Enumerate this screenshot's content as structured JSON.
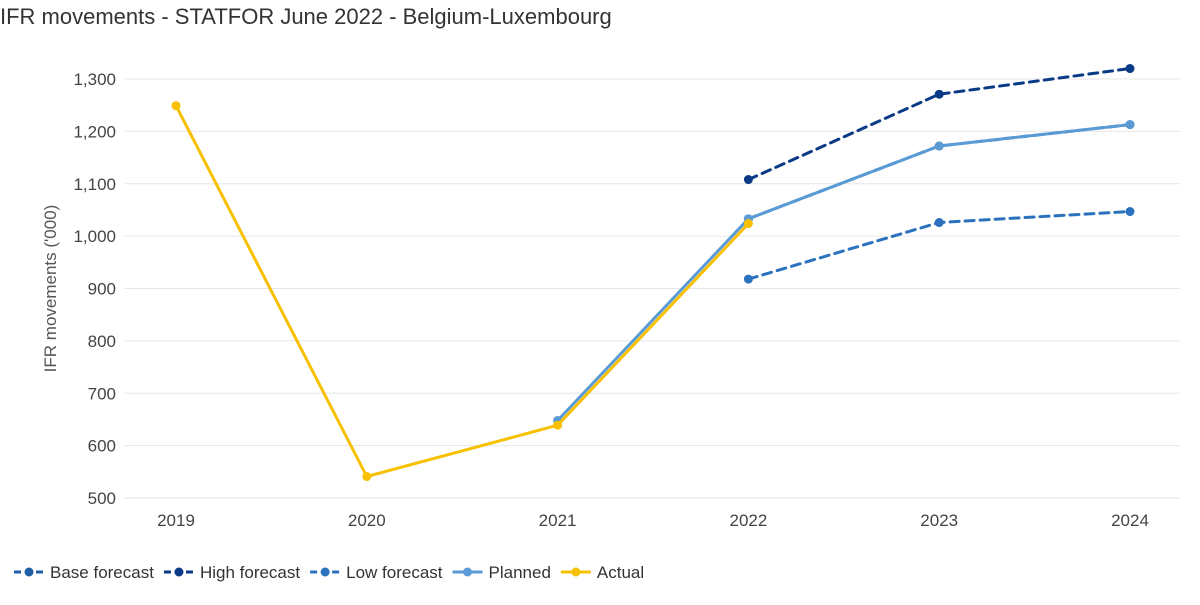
{
  "chart_data": {
    "type": "line",
    "title": "IFR movements - STATFOR June 2022 - Belgium-Luxembourg",
    "xlabel": "",
    "ylabel": "IFR movements ('000)",
    "categories": [
      "2019",
      "2020",
      "2021",
      "2022",
      "2023",
      "2024"
    ],
    "ylim": [
      500,
      1300
    ],
    "yticks": [
      "500",
      "600",
      "700",
      "800",
      "900",
      "1,000",
      "1,100",
      "1,200",
      "1,300"
    ],
    "grid": true,
    "legend_position": "bottom-left",
    "series": [
      {
        "name": "Base forecast",
        "color": "#1f5fa8",
        "dash": "dashed",
        "values": [
          null,
          null,
          null,
          1033,
          1172,
          1213
        ]
      },
      {
        "name": "High forecast",
        "color": "#0a3a86",
        "dash": "dashed",
        "values": [
          null,
          null,
          null,
          1108,
          1271,
          1320
        ]
      },
      {
        "name": "Low forecast",
        "color": "#2a72bd",
        "dash": "dashed",
        "values": [
          null,
          null,
          null,
          918,
          1026,
          1047
        ]
      },
      {
        "name": "Planned",
        "color": "#5b9bd5",
        "dash": "solid",
        "values": [
          null,
          null,
          648,
          1033,
          1172,
          1213
        ]
      },
      {
        "name": "Actual",
        "color": "#f7c000",
        "dash": "solid",
        "values": [
          1249,
          541,
          639,
          1024,
          null,
          null
        ]
      }
    ]
  }
}
